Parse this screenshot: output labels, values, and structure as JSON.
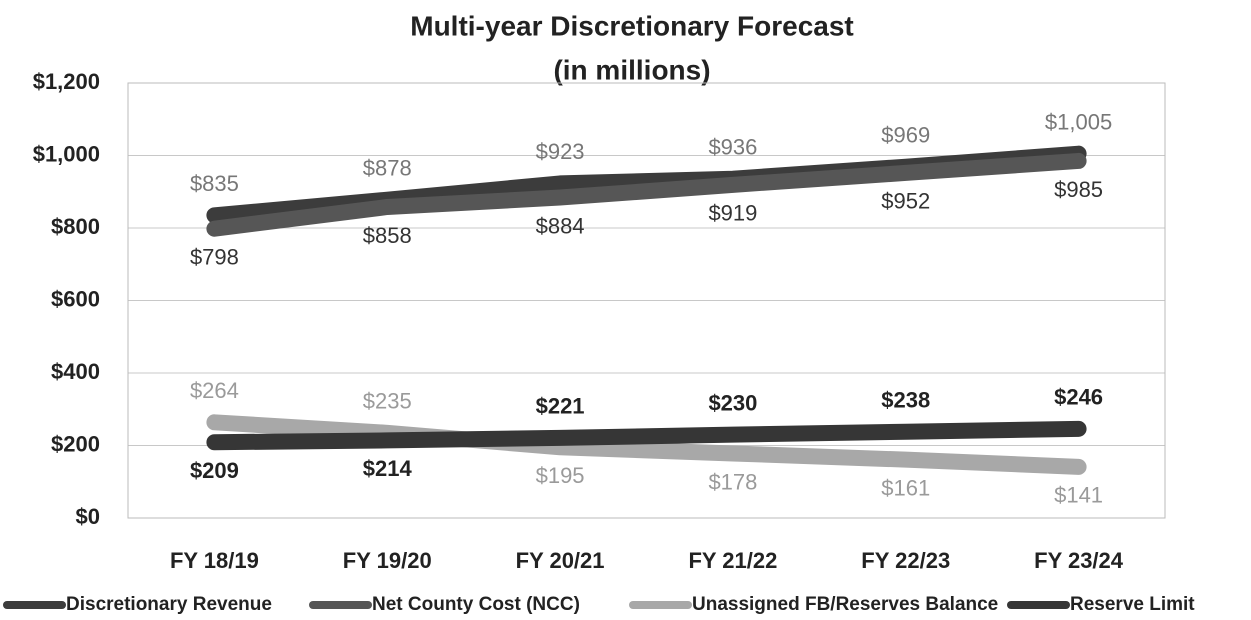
{
  "chart_data": {
    "type": "line",
    "title": "Multi-year Discretionary Forecast",
    "subtitle": "(in millions)",
    "categories": [
      "FY 18/19",
      "FY 19/20",
      "FY 20/21",
      "FY 21/22",
      "FY 22/23",
      "FY 23/24"
    ],
    "series": [
      {
        "name": "Discretionary Revenue",
        "color": "#3c3c3c",
        "label_color": "#777777",
        "values": [
          835,
          878,
          923,
          936,
          969,
          1005
        ],
        "value_labels": [
          "$835",
          "$878",
          "$923",
          "$936",
          "$969",
          "$1,005"
        ]
      },
      {
        "name": "Net County Cost (NCC)",
        "color": "#565656",
        "label_color": "#333333",
        "values": [
          798,
          858,
          884,
          919,
          952,
          985
        ],
        "value_labels": [
          "$798",
          "$858",
          "$884",
          "$919",
          "$952",
          "$985"
        ]
      },
      {
        "name": "Unassigned FB/Reserves Balance",
        "color": "#a8a8a8",
        "label_color": "#9a9a9a",
        "values": [
          264,
          235,
          195,
          178,
          161,
          141
        ],
        "value_labels": [
          "$264",
          "$235",
          "$195",
          "$178",
          "$161",
          "$141"
        ]
      },
      {
        "name": "Reserve Limit",
        "color": "#363636",
        "label_color": "#222222",
        "values": [
          209,
          214,
          221,
          230,
          238,
          246
        ],
        "value_labels": [
          "$209",
          "$214",
          "$221",
          "$230",
          "$238",
          "$246"
        ]
      }
    ],
    "ylim": [
      0,
      1200
    ],
    "yticks": [
      {
        "value": 0,
        "label": "$0"
      },
      {
        "value": 200,
        "label": "$200"
      },
      {
        "value": 400,
        "label": "$400"
      },
      {
        "value": 600,
        "label": "$600"
      },
      {
        "value": 800,
        "label": "$800"
      },
      {
        "value": 1000,
        "label": "$1,000"
      },
      {
        "value": 1200,
        "label": "$1,200"
      }
    ],
    "grid": true,
    "legend": "bottom"
  }
}
